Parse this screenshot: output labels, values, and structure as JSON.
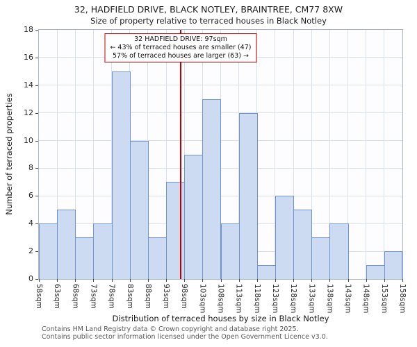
{
  "chart_data": {
    "type": "bar",
    "title": "32, HADFIELD DRIVE, BLACK NOTLEY, BRAINTREE, CM77 8XW",
    "subtitle": "Size of property relative to terraced houses in Black Notley",
    "xlabel": "Distribution of terraced houses by size in Black Notley",
    "ylabel": "Number of terraced properties",
    "x_min": 58,
    "x_max": 158,
    "bin_width_sqm": 5,
    "ylim": [
      0,
      18
    ],
    "ytick_step": 2,
    "grid": true,
    "tick_labels": [
      "58sqm",
      "63sqm",
      "68sqm",
      "73sqm",
      "78sqm",
      "83sqm",
      "88sqm",
      "93sqm",
      "98sqm",
      "103sqm",
      "108sqm",
      "113sqm",
      "118sqm",
      "123sqm",
      "128sqm",
      "133sqm",
      "138sqm",
      "143sqm",
      "148sqm",
      "153sqm",
      "158sqm"
    ],
    "values": [
      4,
      5,
      3,
      4,
      15,
      10,
      3,
      7,
      9,
      13,
      4,
      12,
      1,
      6,
      5,
      3,
      4,
      0,
      1,
      2
    ],
    "bar_fill": "#ccdaf2",
    "bar_border": "#6f93cf",
    "marker": {
      "value": 97,
      "label": "97sqm",
      "color": "#c00000"
    }
  },
  "annotation": {
    "line1": "32 HADFIELD DRIVE: 97sqm",
    "line2": "← 43% of terraced houses are smaller (47)",
    "line3": "57% of terraced houses are larger (63) →"
  },
  "footer": {
    "line1": "Contains HM Land Registry data © Crown copyright and database right 2025.",
    "line2": "Contains public sector information licensed under the Open Government Licence v3.0."
  }
}
